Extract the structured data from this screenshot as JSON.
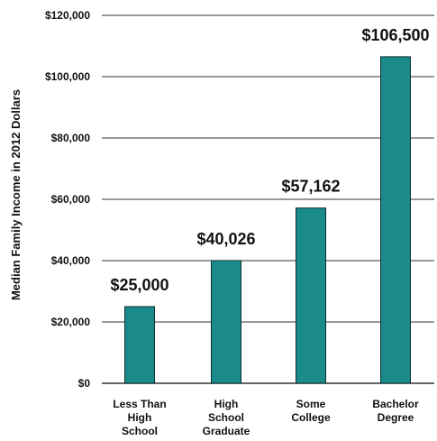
{
  "chart_data": {
    "type": "bar",
    "categories": [
      [
        "Less Than",
        "High",
        "School"
      ],
      [
        "High",
        "School",
        "Graduate"
      ],
      [
        "Some",
        "College"
      ],
      [
        "Bachelor",
        "Degree"
      ]
    ],
    "values": [
      25000,
      40026,
      57162,
      106500
    ],
    "data_labels": [
      "$25,000",
      "$40,026",
      "$57,162",
      "$106,500"
    ],
    "title": "",
    "xlabel": "",
    "ylabel": "Median Family Income in 2012 Dollars",
    "ylim": [
      0,
      120000
    ],
    "yticks": [
      0,
      20000,
      40000,
      60000,
      80000,
      100000,
      120000
    ],
    "ytick_labels": [
      "$0",
      "$20,000",
      "$40,000",
      "$60,000",
      "$80,000",
      "$100,000",
      "$120,000"
    ],
    "grid": true,
    "colors": {
      "bar_fill": "#1a8a8a",
      "bar_stroke": "#0d2f2f",
      "grid": "#333333"
    }
  }
}
